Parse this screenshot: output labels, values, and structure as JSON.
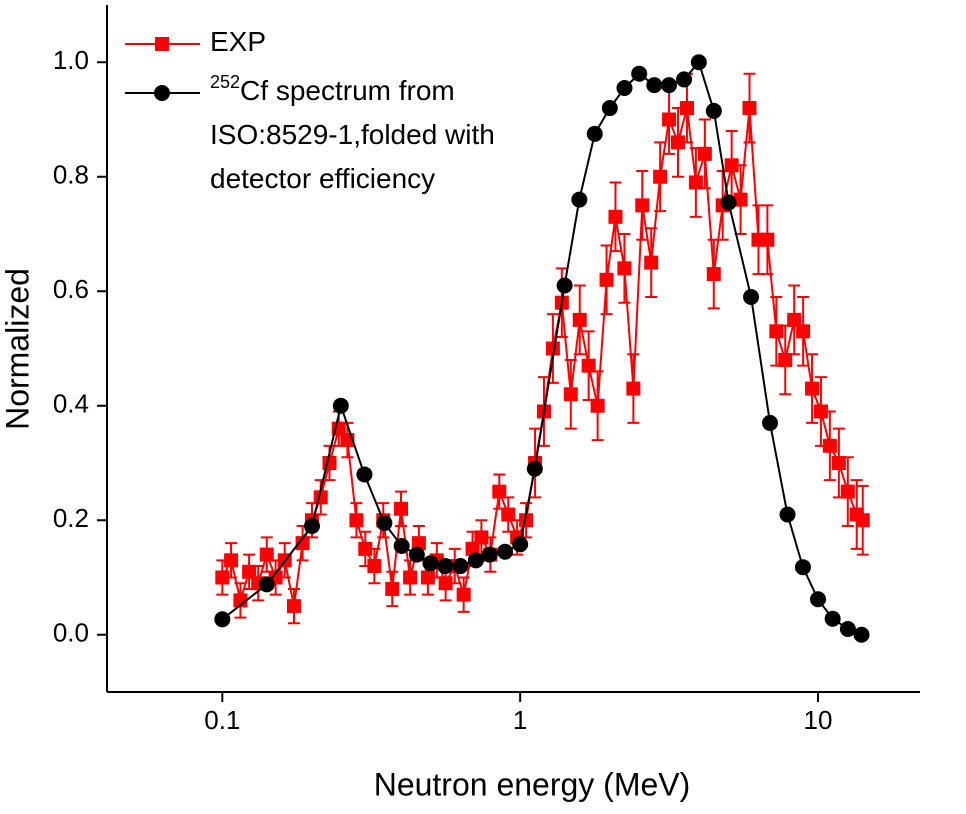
{
  "chart_data": {
    "type": "line",
    "xlabel": "Neutron energy (MeV)",
    "ylabel": "Normalized",
    "xscale": "log",
    "xlim": [
      0.041,
      22
    ],
    "xticks": [
      0.1,
      1,
      10
    ],
    "ylim": [
      -0.1,
      1.1
    ],
    "yticks": [
      {
        "value": 0,
        "label": "0.0"
      },
      {
        "value": 0.2,
        "label": "0.2"
      },
      {
        "value": 0.4,
        "label": "0.4"
      },
      {
        "value": 0.6,
        "label": "0.6"
      },
      {
        "value": 0.8,
        "label": "0.8"
      },
      {
        "value": 1,
        "label": "1.0"
      }
    ],
    "legend": "upper left",
    "series": [
      {
        "name": "EXP",
        "color": "#ff0000",
        "marker": "square",
        "x": [
          0.1,
          0.107,
          0.115,
          0.123,
          0.132,
          0.141,
          0.151,
          0.162,
          0.174,
          0.186,
          0.2,
          0.214,
          0.229,
          0.246,
          0.263,
          0.282,
          0.302,
          0.324,
          0.347,
          0.372,
          0.398,
          0.427,
          0.457,
          0.49,
          0.525,
          0.562,
          0.603,
          0.646,
          0.692,
          0.741,
          0.794,
          0.851,
          0.912,
          0.977,
          1.047,
          1.122,
          1.202,
          1.288,
          1.38,
          1.479,
          1.585,
          1.698,
          1.82,
          1.95,
          2.089,
          2.239,
          2.399,
          2.57,
          2.754,
          2.951,
          3.162,
          3.388,
          3.631,
          3.89,
          4.169,
          4.467,
          4.786,
          5.129,
          5.495,
          5.888,
          6.31,
          6.761,
          7.244,
          7.762,
          8.318,
          8.913,
          9.55,
          10.23,
          10.96,
          11.75,
          12.59,
          13.49,
          14.13
        ],
        "values": [
          0.1,
          0.13,
          0.06,
          0.11,
          0.09,
          0.14,
          0.1,
          0.13,
          0.05,
          0.16,
          0.2,
          0.24,
          0.3,
          0.36,
          0.34,
          0.2,
          0.15,
          0.12,
          0.2,
          0.08,
          0.22,
          0.1,
          0.16,
          0.1,
          0.13,
          0.09,
          0.12,
          0.07,
          0.15,
          0.17,
          0.14,
          0.25,
          0.21,
          0.17,
          0.2,
          0.3,
          0.39,
          0.5,
          0.58,
          0.42,
          0.55,
          0.47,
          0.4,
          0.62,
          0.73,
          0.64,
          0.43,
          0.75,
          0.65,
          0.8,
          0.9,
          0.86,
          0.92,
          0.79,
          0.84,
          0.63,
          0.75,
          0.82,
          0.76,
          0.92,
          0.69,
          0.69,
          0.53,
          0.48,
          0.55,
          0.53,
          0.43,
          0.39,
          0.33,
          0.3,
          0.25,
          0.21,
          0.2
        ],
        "errors": [
          0.03,
          0.03,
          0.03,
          0.03,
          0.03,
          0.03,
          0.03,
          0.03,
          0.03,
          0.03,
          0.03,
          0.03,
          0.03,
          0.03,
          0.03,
          0.03,
          0.03,
          0.03,
          0.03,
          0.03,
          0.03,
          0.03,
          0.03,
          0.03,
          0.03,
          0.03,
          0.03,
          0.03,
          0.03,
          0.03,
          0.03,
          0.03,
          0.03,
          0.03,
          0.03,
          0.06,
          0.06,
          0.06,
          0.06,
          0.06,
          0.06,
          0.06,
          0.06,
          0.06,
          0.06,
          0.06,
          0.06,
          0.06,
          0.06,
          0.06,
          0.06,
          0.06,
          0.06,
          0.06,
          0.06,
          0.06,
          0.06,
          0.06,
          0.06,
          0.06,
          0.06,
          0.06,
          0.06,
          0.06,
          0.06,
          0.06,
          0.06,
          0.06,
          0.06,
          0.06,
          0.06,
          0.06,
          0.06
        ]
      },
      {
        "name": "252Cf spectrum from ISO:8529-1,folded with detector efficiency",
        "color": "#000000",
        "marker": "circle",
        "x": [
          0.1,
          0.141,
          0.2,
          0.25,
          0.3,
          0.35,
          0.4,
          0.45,
          0.5,
          0.56,
          0.63,
          0.71,
          0.79,
          0.89,
          1.0,
          1.12,
          1.41,
          1.58,
          1.78,
          2.0,
          2.24,
          2.51,
          2.82,
          3.16,
          3.55,
          3.98,
          4.47,
          5.01,
          5.96,
          6.9,
          7.9,
          8.9,
          10,
          11.2,
          12.6,
          14
        ],
        "values": [
          0.027,
          0.088,
          0.19,
          0.4,
          0.28,
          0.195,
          0.155,
          0.14,
          0.125,
          0.12,
          0.12,
          0.13,
          0.14,
          0.145,
          0.158,
          0.29,
          0.61,
          0.76,
          0.875,
          0.92,
          0.955,
          0.98,
          0.96,
          0.96,
          0.97,
          1.0,
          0.915,
          0.755,
          0.59,
          0.37,
          0.21,
          0.118,
          0.062,
          0.028,
          0.01,
          0.0
        ]
      }
    ]
  }
}
